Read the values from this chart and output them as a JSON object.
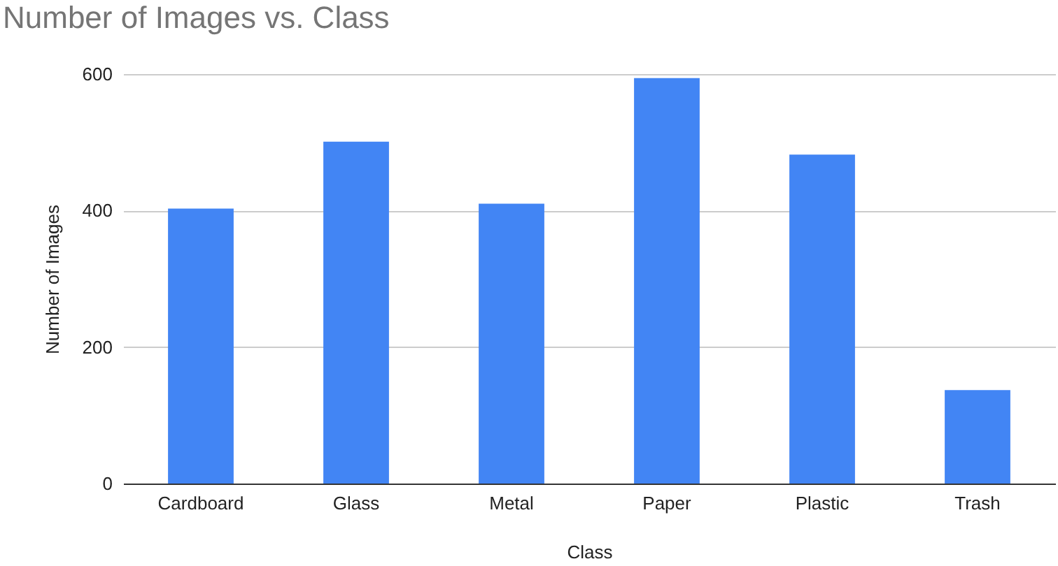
{
  "chart_data": {
    "type": "bar",
    "title": "Number of Images vs. Class",
    "xlabel": "Class",
    "ylabel": "Number of Images",
    "categories": [
      "Cardboard",
      "Glass",
      "Metal",
      "Paper",
      "Plastic",
      "Trash"
    ],
    "values": [
      403,
      501,
      410,
      594,
      482,
      137
    ],
    "color": "#4285f4",
    "ylim": [
      0,
      600
    ],
    "yticks": [
      0,
      200,
      400,
      600
    ],
    "grid": "y"
  }
}
